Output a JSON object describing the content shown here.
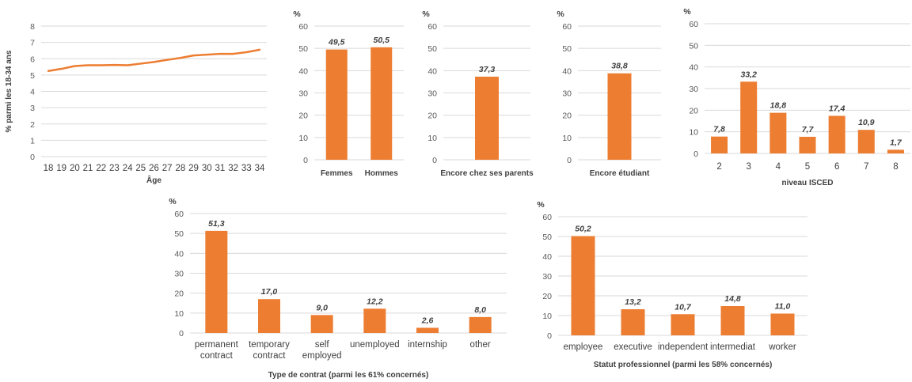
{
  "chart_data": [
    {
      "id": "age",
      "type": "line",
      "x": [
        18,
        19,
        20,
        21,
        22,
        23,
        24,
        25,
        26,
        27,
        28,
        29,
        30,
        31,
        32,
        33,
        34
      ],
      "values": [
        5.25,
        5.38,
        5.55,
        5.6,
        5.6,
        5.62,
        5.6,
        5.7,
        5.8,
        5.93,
        6.05,
        6.2,
        6.25,
        6.3,
        6.3,
        6.4,
        6.55
      ],
      "xlabel": "Âge",
      "ylabel": "% parmi les 18-34 ans",
      "ylim": [
        0,
        8
      ],
      "yticks": [
        "0",
        "1",
        "2",
        "3",
        "4",
        "5",
        "6",
        "7",
        "8"
      ],
      "color": "#ed7d31",
      "grid": true
    },
    {
      "id": "sexe",
      "type": "bar",
      "unit": "%",
      "categories": [
        "Femmes",
        "Hommes"
      ],
      "values": [
        49.5,
        50.5
      ],
      "labels": [
        "49,5",
        "50,5"
      ],
      "ylim": [
        0,
        60
      ],
      "yticks": [
        "0",
        "10",
        "20",
        "30",
        "40",
        "50",
        "60"
      ],
      "color": "#ed7d31",
      "grid": true
    },
    {
      "id": "parents",
      "type": "bar",
      "unit": "%",
      "categories": [
        "Encore chez ses parents"
      ],
      "values": [
        37.3
      ],
      "labels": [
        "37,3"
      ],
      "ylim": [
        0,
        60
      ],
      "yticks": [
        "0",
        "10",
        "20",
        "30",
        "40",
        "50",
        "60"
      ],
      "color": "#ed7d31",
      "grid": true
    },
    {
      "id": "etudiant",
      "type": "bar",
      "unit": "%",
      "categories": [
        "Encore étudiant"
      ],
      "values": [
        38.8
      ],
      "labels": [
        "38,8"
      ],
      "ylim": [
        0,
        60
      ],
      "yticks": [
        "0",
        "10",
        "20",
        "30",
        "40",
        "50",
        "60"
      ],
      "color": "#ed7d31",
      "grid": true
    },
    {
      "id": "isced",
      "type": "bar",
      "unit": "%",
      "categories": [
        "2",
        "3",
        "4",
        "5",
        "6",
        "7",
        "8"
      ],
      "values": [
        7.8,
        33.2,
        18.8,
        7.7,
        17.4,
        10.9,
        1.7
      ],
      "labels": [
        "7,8",
        "33,2",
        "18,8",
        "7,7",
        "17,4",
        "10,9",
        "1,7"
      ],
      "xlabel": "niveau ISCED",
      "ylim": [
        0,
        60
      ],
      "yticks": [
        "0",
        "10",
        "20",
        "30",
        "40",
        "50",
        "60"
      ],
      "color": "#ed7d31",
      "grid": true
    },
    {
      "id": "contrat",
      "type": "bar",
      "unit": "%",
      "categories": [
        [
          "permanent",
          "contract"
        ],
        [
          "temporary",
          "contract"
        ],
        [
          "self",
          "employed"
        ],
        [
          "unemployed"
        ],
        [
          "internship"
        ],
        [
          "other"
        ]
      ],
      "values": [
        51.3,
        17.0,
        9.0,
        12.2,
        2.6,
        8.0
      ],
      "labels": [
        "51,3",
        "17,0",
        "9,0",
        "12,2",
        "2,6",
        "8,0"
      ],
      "xlabel": "Type de contrat (parmi les 61% concernés)",
      "ylim": [
        0,
        60
      ],
      "yticks": [
        "0",
        "10",
        "20",
        "30",
        "40",
        "50",
        "60"
      ],
      "color": "#ed7d31",
      "grid": true
    },
    {
      "id": "statut",
      "type": "bar",
      "unit": "%",
      "categories": [
        [
          "employee"
        ],
        [
          "executive"
        ],
        [
          "independent"
        ],
        [
          "intermediat"
        ],
        [
          "worker"
        ]
      ],
      "values": [
        50.2,
        13.2,
        10.7,
        14.8,
        11.0
      ],
      "labels": [
        "50,2",
        "13,2",
        "10,7",
        "14,8",
        "11,0"
      ],
      "xlabel": "Statut professionnel (parmi les 58% concernés)",
      "ylim": [
        0,
        60
      ],
      "yticks": [
        "0",
        "10",
        "20",
        "30",
        "40",
        "50",
        "60"
      ],
      "color": "#ed7d31",
      "grid": true
    }
  ]
}
